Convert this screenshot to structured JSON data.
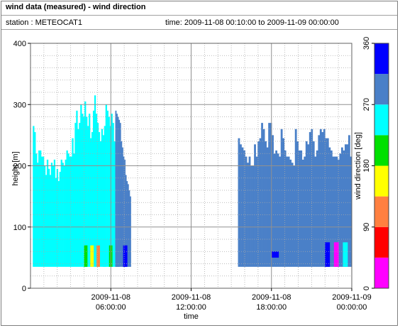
{
  "header": {
    "title": "wind data (measured) - wind direction",
    "station": "station : METEOCAT1",
    "time_range": "time: 2009-11-08 00:10:00 to 2009-11-09 00:00:00"
  },
  "chart_data": {
    "type": "heatmap",
    "title": "wind data (measured) - wind direction",
    "xlabel": "time",
    "ylabel": "height [m]",
    "ylim": [
      0,
      400
    ],
    "yticks": [
      0,
      100,
      200,
      300,
      400
    ],
    "xlim": [
      "2009-11-08 00:00:00",
      "2009-11-09 00:00:00"
    ],
    "xticks": [
      {
        "value": "2009-11-08 06:00:00",
        "line1": "2009-11-08",
        "line2": "06:00:00"
      },
      {
        "value": "2009-11-08 12:00:00",
        "line1": "2009-11-08",
        "line2": "12:00:00"
      },
      {
        "value": "2009-11-08 18:00:00",
        "line1": "2009-11-08",
        "line2": "18:00:00"
      },
      {
        "value": "2009-11-09 00:00:00",
        "line1": "2009-11-09",
        "line2": "00:00:00"
      }
    ],
    "grid": true,
    "colorbar": {
      "label": "wind direction [deg]",
      "ticks": [
        0,
        90,
        180,
        270,
        360
      ],
      "bands": [
        {
          "from": 0,
          "to": 45,
          "color": "#ff00ff"
        },
        {
          "from": 45,
          "to": 90,
          "color": "#ff0000"
        },
        {
          "from": 90,
          "to": 135,
          "color": "#ff8040"
        },
        {
          "from": 135,
          "to": 180,
          "color": "#ffff00"
        },
        {
          "from": 180,
          "to": 225,
          "color": "#00e000"
        },
        {
          "from": 225,
          "to": 270,
          "color": "#00ffff"
        },
        {
          "from": 270,
          "to": 315,
          "color": "#4a80c8"
        },
        {
          "from": 315,
          "to": 360,
          "color": "#0000ff"
        }
      ]
    },
    "segments": [
      {
        "period": "00:10-06:20",
        "hour_start": 0.17,
        "hour_end": 6.33,
        "dominant_direction_deg": 250,
        "lowest_height_m": 35,
        "top_heights_m": [
          265,
          255,
          220,
          205,
          225,
          225,
          215,
          215,
          200,
          185,
          210,
          195,
          185,
          205,
          200,
          210,
          180,
          195,
          175,
          190,
          210,
          205,
          200,
          210,
          225,
          220,
          215,
          215,
          245,
          220,
          270,
          290,
          260,
          270,
          300,
          285,
          280,
          305,
          280,
          265,
          285,
          245,
          255,
          290,
          315,
          285,
          270,
          255,
          240,
          260,
          250,
          265,
          300,
          290,
          280,
          265,
          285,
          270,
          240
        ]
      },
      {
        "period": "06:20-07:30",
        "hour_start": 6.33,
        "hour_end": 7.5,
        "dominant_direction_deg": 290,
        "lowest_height_m": 35,
        "top_heights_m": [
          290,
          285,
          280,
          275,
          270,
          240,
          230,
          215,
          210,
          185,
          175,
          170,
          160,
          150
        ]
      },
      {
        "period": "15:30-24:00",
        "hour_start": 15.5,
        "hour_end": 24.0,
        "dominant_direction_deg": 290,
        "lowest_height_m": 35,
        "top_heights_m": [
          245,
          235,
          230,
          225,
          215,
          205,
          215,
          200,
          200,
          235,
          215,
          240,
          245,
          270,
          260,
          240,
          230,
          270,
          270,
          250,
          220,
          225,
          220,
          215,
          260,
          245,
          225,
          215,
          215,
          210,
          205,
          200,
          260,
          240,
          225,
          225,
          210,
          215,
          240,
          235,
          255,
          260,
          240,
          215,
          225,
          250,
          260,
          255,
          260,
          245,
          245,
          230,
          225,
          215,
          215,
          215,
          210,
          220,
          230,
          225,
          235,
          235,
          250,
          215
        ]
      }
    ],
    "low_level_directions": [
      {
        "period": "04:00-06:20",
        "height_range_m": [
          35,
          70
        ],
        "directions_deg": [
          200,
          160,
          90,
          225,
          180
        ]
      },
      {
        "period": "06:20-07:30",
        "height_range_m": [
          35,
          70
        ],
        "directions_deg": [
          270,
          340
        ]
      },
      {
        "period": "18:00-19:00",
        "height_range_m": [
          50,
          60
        ],
        "directions_deg": [
          340
        ]
      },
      {
        "period": "22:00-24:00",
        "height_range_m": [
          35,
          75
        ],
        "directions_deg": [
          340,
          20,
          225
        ]
      }
    ]
  }
}
